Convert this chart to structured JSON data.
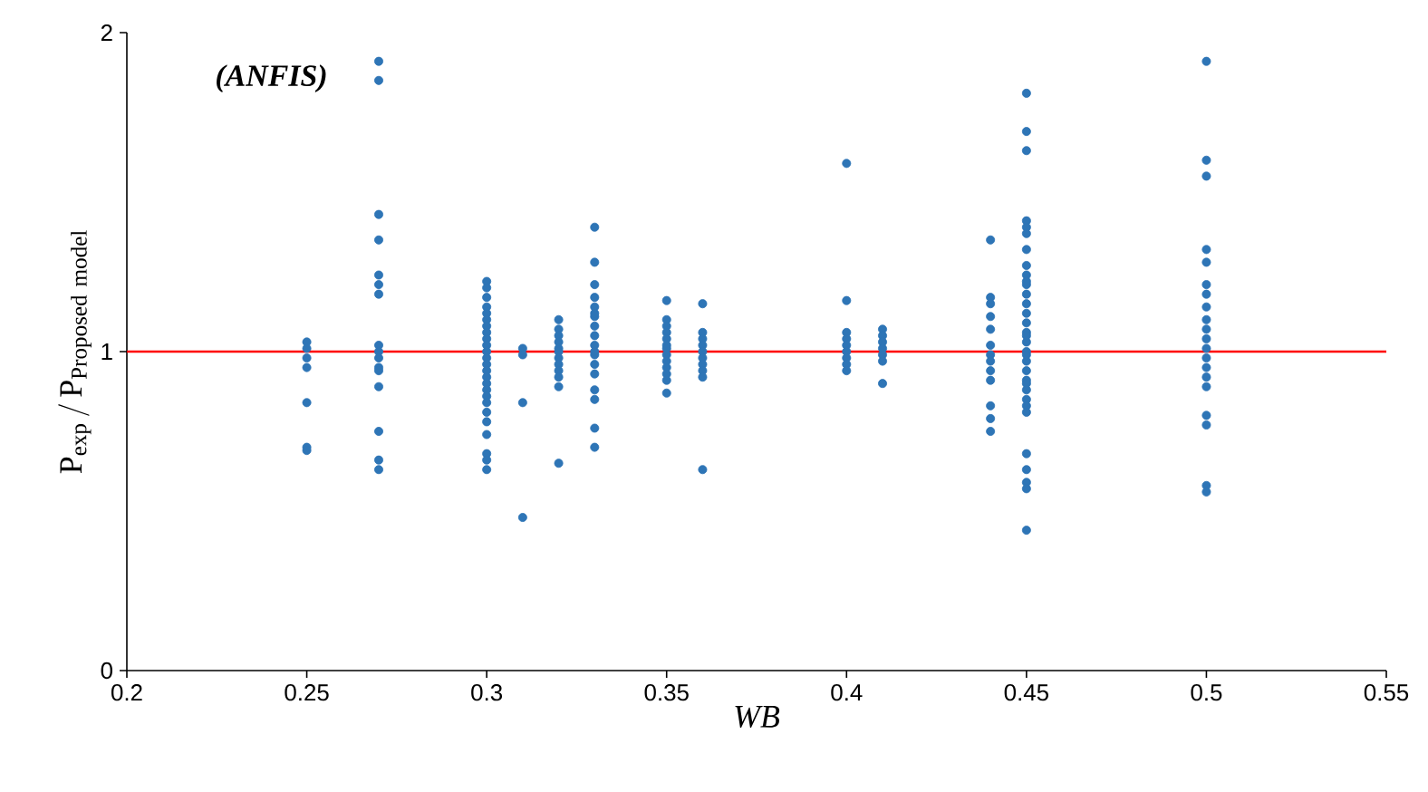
{
  "chart_data": {
    "type": "scatter",
    "xlabel": "WB",
    "ylabel": "\\mathrm{P}_{\\mathrm{exp}}\\,/\\,\\mathrm{P}_{\\mathrm{Proposed\\ model}}",
    "annotations": [
      "(ANFIS)"
    ],
    "xlim": [
      0.2,
      0.55
    ],
    "xticks": [
      0.2,
      0.25,
      0.3,
      0.35,
      0.4,
      0.45,
      0.5,
      0.55
    ],
    "ylim": [
      0,
      2
    ],
    "yticks": [
      0,
      1,
      2
    ],
    "grid": false,
    "marker": "circle",
    "ref_lines": [
      {
        "axis": "y",
        "value": 1,
        "color": "#ff0000",
        "line_style": "solid"
      }
    ],
    "series": [
      {
        "color": "#2e75b6",
        "x": [
          0.25,
          0.25,
          0.25,
          0.25,
          0.25,
          0.25,
          0.25,
          0.27,
          0.27,
          0.27,
          0.27,
          0.27,
          0.27,
          0.27,
          0.27,
          0.27,
          0.27,
          0.27,
          0.27,
          0.27,
          0.27,
          0.27,
          0.27,
          0.3,
          0.3,
          0.3,
          0.3,
          0.3,
          0.3,
          0.3,
          0.3,
          0.3,
          0.3,
          0.3,
          0.3,
          0.3,
          0.3,
          0.3,
          0.3,
          0.3,
          0.3,
          0.3,
          0.3,
          0.3,
          0.3,
          0.3,
          0.3,
          0.3,
          0.31,
          0.31,
          0.31,
          0.31,
          0.32,
          0.32,
          0.32,
          0.32,
          0.32,
          0.32,
          0.32,
          0.32,
          0.32,
          0.32,
          0.32,
          0.32,
          0.33,
          0.33,
          0.33,
          0.33,
          0.33,
          0.33,
          0.33,
          0.33,
          0.33,
          0.33,
          0.33,
          0.33,
          0.33,
          0.33,
          0.33,
          0.33,
          0.33,
          0.33,
          0.35,
          0.35,
          0.35,
          0.35,
          0.35,
          0.35,
          0.35,
          0.35,
          0.35,
          0.35,
          0.35,
          0.35,
          0.35,
          0.36,
          0.36,
          0.36,
          0.36,
          0.36,
          0.36,
          0.36,
          0.36,
          0.36,
          0.36,
          0.4,
          0.4,
          0.4,
          0.4,
          0.4,
          0.4,
          0.4,
          0.4,
          0.4,
          0.41,
          0.41,
          0.41,
          0.41,
          0.41,
          0.41,
          0.41,
          0.44,
          0.44,
          0.44,
          0.44,
          0.44,
          0.44,
          0.44,
          0.44,
          0.44,
          0.44,
          0.44,
          0.44,
          0.44,
          0.45,
          0.45,
          0.45,
          0.45,
          0.45,
          0.45,
          0.45,
          0.45,
          0.45,
          0.45,
          0.45,
          0.45,
          0.45,
          0.45,
          0.45,
          0.45,
          0.45,
          0.45,
          0.45,
          0.45,
          0.45,
          0.45,
          0.45,
          0.45,
          0.45,
          0.45,
          0.45,
          0.45,
          0.45,
          0.45,
          0.45,
          0.45,
          0.45,
          0.5,
          0.5,
          0.5,
          0.5,
          0.5,
          0.5,
          0.5,
          0.5,
          0.5,
          0.5,
          0.5,
          0.5,
          0.5,
          0.5,
          0.5,
          0.5,
          0.5,
          0.5,
          0.5,
          0.5
        ],
        "values": [
          1.03,
          1.01,
          0.98,
          0.95,
          0.84,
          0.7,
          0.69,
          1.91,
          1.85,
          1.43,
          1.35,
          1.24,
          1.21,
          1.18,
          1.02,
          1.0,
          0.98,
          0.95,
          0.94,
          0.89,
          0.75,
          0.66,
          0.63,
          1.22,
          1.2,
          1.17,
          1.14,
          1.12,
          1.1,
          1.08,
          1.06,
          1.04,
          1.02,
          1.0,
          0.98,
          0.96,
          0.94,
          0.92,
          0.9,
          0.88,
          0.86,
          0.84,
          0.81,
          0.78,
          0.74,
          0.68,
          0.66,
          0.63,
          1.01,
          0.99,
          0.84,
          0.48,
          1.1,
          1.07,
          1.05,
          1.03,
          1.01,
          1.0,
          0.98,
          0.96,
          0.94,
          0.92,
          0.89,
          0.65,
          1.39,
          1.28,
          1.21,
          1.17,
          1.14,
          1.11,
          1.08,
          1.05,
          1.02,
          0.99,
          0.96,
          0.93,
          0.88,
          0.85,
          0.76,
          0.7,
          1.12,
          1.0,
          1.16,
          1.1,
          1.08,
          1.06,
          1.04,
          1.02,
          1.01,
          0.99,
          0.97,
          0.95,
          0.93,
          0.91,
          0.87,
          1.15,
          1.06,
          1.04,
          1.02,
          1.0,
          0.98,
          0.96,
          0.94,
          0.92,
          0.63,
          1.59,
          1.16,
          1.06,
          1.04,
          1.02,
          1.0,
          0.98,
          0.96,
          0.94,
          1.07,
          1.05,
          1.03,
          1.01,
          0.99,
          0.97,
          0.9,
          1.35,
          1.17,
          1.15,
          1.11,
          1.07,
          1.02,
          0.99,
          0.97,
          0.94,
          0.91,
          0.83,
          0.79,
          0.75,
          1.81,
          1.69,
          1.63,
          1.41,
          1.39,
          1.37,
          1.32,
          1.27,
          1.24,
          1.21,
          1.18,
          1.15,
          1.12,
          1.09,
          1.06,
          1.03,
          1.0,
          0.97,
          0.94,
          0.91,
          0.88,
          0.85,
          0.83,
          0.81,
          0.68,
          0.63,
          0.59,
          0.57,
          0.44,
          1.22,
          1.05,
          0.99,
          0.9,
          1.91,
          1.6,
          1.55,
          1.32,
          1.28,
          1.21,
          1.18,
          1.14,
          1.1,
          1.07,
          1.04,
          1.01,
          0.98,
          0.95,
          0.92,
          0.89,
          0.8,
          0.77,
          0.58,
          0.56
        ]
      }
    ]
  }
}
